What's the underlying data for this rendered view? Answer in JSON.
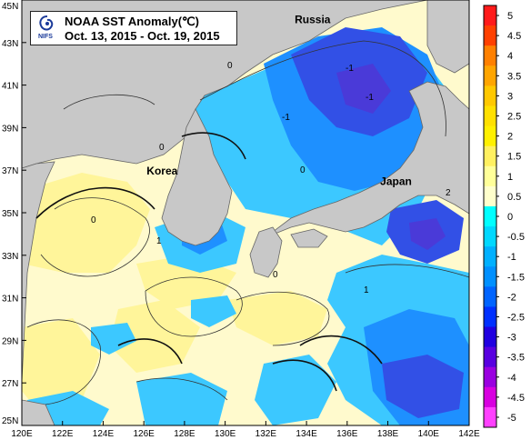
{
  "title": {
    "line1": "NOAA SST Anomaly(℃)",
    "line2": "Oct. 13, 2015 - Oct. 19, 2015",
    "logo_text": "NIFS",
    "logo_icon": "nifs-logo-icon"
  },
  "axes": {
    "x_ticks": [
      "120E",
      "122E",
      "124E",
      "126E",
      "128E",
      "130E",
      "132E",
      "134E",
      "136E",
      "138E",
      "140E",
      "142E"
    ],
    "y_ticks": [
      "45N",
      "43N",
      "41N",
      "39N",
      "37N",
      "35N",
      "33N",
      "31N",
      "29N",
      "27N",
      "25N"
    ],
    "lon_range": [
      120,
      142
    ],
    "lat_range": [
      25,
      45
    ]
  },
  "places": [
    {
      "name": "Russia",
      "lon": 134.3,
      "lat": 43.9
    },
    {
      "name": "Korea",
      "lon": 126.9,
      "lat": 36.8
    },
    {
      "name": "Japan",
      "lon": 138.4,
      "lat": 36.3
    }
  ],
  "colorbar": {
    "labels": [
      "5",
      "4.5",
      "4",
      "3.5",
      "3",
      "2.5",
      "2",
      "1.5",
      "1",
      "0.5",
      "0",
      "-0.5",
      "-1",
      "-1.5",
      "-2",
      "-2.5",
      "-3",
      "-3.5",
      "-4",
      "-4.5",
      "-5"
    ],
    "colors": [
      "#ff1a1a",
      "#ff4000",
      "#ff8000",
      "#ffa500",
      "#ffc800",
      "#ffe000",
      "#fff000",
      "#fff060",
      "#ffff99",
      "#ffffcc",
      "#00ffff",
      "#00d8ff",
      "#00b0ff",
      "#0090ff",
      "#0064ff",
      "#0030ff",
      "#2000e0",
      "#5800e0",
      "#9a00e0",
      "#d800e0",
      "#ff40ff"
    ]
  },
  "colors": {
    "land": "#c8c8c8",
    "positive_light": "#fffacd",
    "positive_mid": "#fff59a",
    "negative_light": "#3cc8ff",
    "negative_mid": "#1e90ff",
    "negative_deep": "#3250e6",
    "negative_deeper": "#4a3ad8"
  },
  "contour_labels": [
    "0",
    "0",
    "0",
    "0",
    "-1",
    "-1",
    "1",
    "1",
    "2",
    "0",
    "-1"
  ]
}
